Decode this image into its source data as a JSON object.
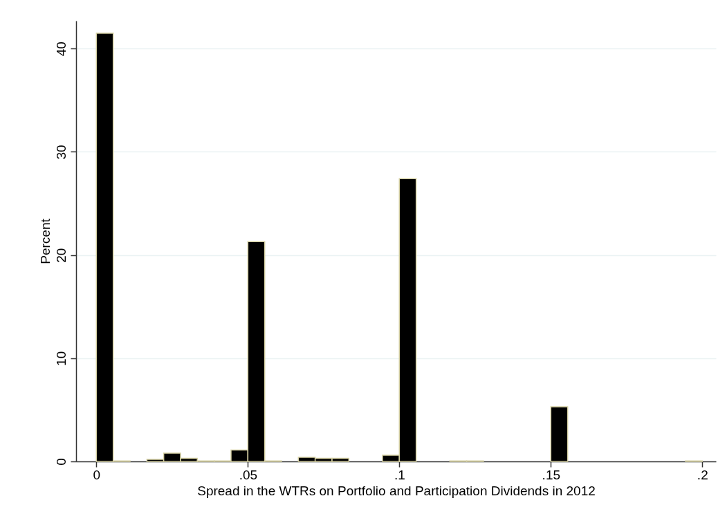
{
  "chart_data": {
    "type": "histogram",
    "xlabel": "Spread in the WTRs on Portfolio and Participation Dividends in 2012",
    "ylabel": "Percent",
    "bins": [
      0,
      0.00556,
      0.01111,
      0.01667,
      0.02222,
      0.02778,
      0.03333,
      0.03889,
      0.04444,
      0.05,
      0.05556,
      0.06111,
      0.06667,
      0.07222,
      0.07778,
      0.08333,
      0.08889,
      0.09444,
      0.1,
      0.10556,
      0.11111,
      0.11667,
      0.12222,
      0.12778,
      0.13333,
      0.13889,
      0.14444,
      0.15,
      0.15556,
      0.16111,
      0.16667,
      0.17222,
      0.17778,
      0.18333,
      0.18889,
      0.19444,
      0.2
    ],
    "values": [
      41.5,
      0.05,
      0,
      0.2,
      0.8,
      0.3,
      0.05,
      0.05,
      1.1,
      21.3,
      0.05,
      0,
      0.4,
      0.3,
      0.3,
      0,
      0,
      0.6,
      27.4,
      0,
      0,
      0.05,
      0.05,
      0,
      0,
      0,
      0,
      5.3,
      0,
      0,
      0,
      0,
      0,
      0,
      0,
      0.05
    ],
    "color": "#000000",
    "xlim": [
      -0.0067,
      0.2045
    ],
    "ylim": [
      0,
      42.7
    ],
    "xticks": [
      0,
      {
        "value": 0.05,
        "label": ".05"
      },
      {
        "value": 0.1,
        "label": ".1"
      },
      {
        "value": 0.15,
        "label": ".15"
      },
      {
        "value": 0.2,
        "label": ".2"
      }
    ],
    "yticks": [
      0,
      10,
      20,
      30,
      40
    ],
    "grid": "y"
  }
}
